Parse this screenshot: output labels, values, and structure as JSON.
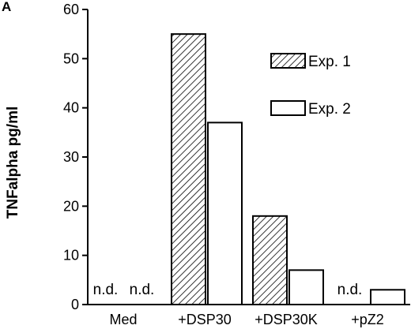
{
  "panel_label": "A",
  "chart_data": {
    "type": "bar",
    "title": "",
    "xlabel": "",
    "ylabel": "TNFalpha pg/ml",
    "ylim": [
      0,
      60
    ],
    "yticks": [
      "0",
      "10",
      "20",
      "30",
      "40",
      "50",
      "60"
    ],
    "categories": [
      "Med",
      "+DSP30",
      "+DSP30K",
      "+pZ2"
    ],
    "series": [
      {
        "name": "Exp. 1",
        "pattern": "hatched",
        "values": [
          null,
          55,
          18,
          null
        ]
      },
      {
        "name": "Exp. 2",
        "pattern": "open",
        "values": [
          null,
          37,
          7,
          3
        ]
      }
    ],
    "annotations": [
      {
        "category": "Med",
        "series": "Exp. 1",
        "text": "n.d."
      },
      {
        "category": "Med",
        "series": "Exp. 2",
        "text": "n.d."
      },
      {
        "category": "+pZ2",
        "series": "Exp. 1",
        "text": "n.d."
      }
    ],
    "legend_position": "top-right",
    "grid": false
  }
}
